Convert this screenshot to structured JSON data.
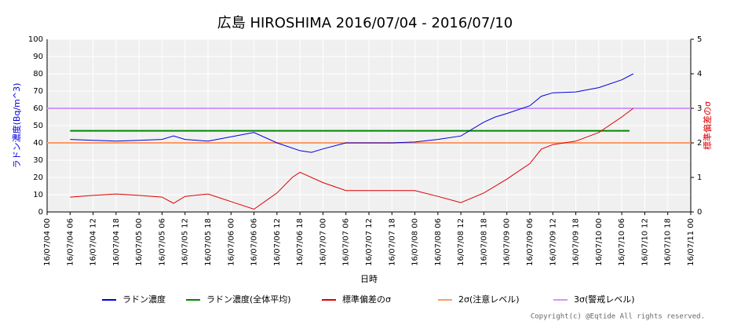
{
  "chart_data": {
    "type": "line",
    "title": "広島 HIROSHIMA 2016/07/04 - 2016/07/10",
    "y_label": "ラドン濃度(Bq/m^3)",
    "y2_label": "標準偏差のσ",
    "x_label": "日時",
    "copyright": "Copyright(c) @Eqtide All rights reserved.",
    "grid": true,
    "xlim": [
      0,
      168
    ],
    "xticks": [
      {
        "value": 0,
        "label": "16/07/04 00"
      },
      {
        "value": 6,
        "label": "16/07/04 06"
      },
      {
        "value": 12,
        "label": "16/07/04 12"
      },
      {
        "value": 18,
        "label": "16/07/04 18"
      },
      {
        "value": 24,
        "label": "16/07/05 00"
      },
      {
        "value": 30,
        "label": "16/07/05 06"
      },
      {
        "value": 36,
        "label": "16/07/05 12"
      },
      {
        "value": 42,
        "label": "16/07/05 18"
      },
      {
        "value": 48,
        "label": "16/07/06 00"
      },
      {
        "value": 54,
        "label": "16/07/06 06"
      },
      {
        "value": 60,
        "label": "16/07/06 12"
      },
      {
        "value": 66,
        "label": "16/07/06 18"
      },
      {
        "value": 72,
        "label": "16/07/07 00"
      },
      {
        "value": 78,
        "label": "16/07/07 06"
      },
      {
        "value": 84,
        "label": "16/07/07 12"
      },
      {
        "value": 90,
        "label": "16/07/07 18"
      },
      {
        "value": 96,
        "label": "16/07/08 00"
      },
      {
        "value": 102,
        "label": "16/07/08 06"
      },
      {
        "value": 108,
        "label": "16/07/08 12"
      },
      {
        "value": 114,
        "label": "16/07/08 18"
      },
      {
        "value": 120,
        "label": "16/07/09 00"
      },
      {
        "value": 126,
        "label": "16/07/09 06"
      },
      {
        "value": 132,
        "label": "16/07/09 12"
      },
      {
        "value": 138,
        "label": "16/07/09 18"
      },
      {
        "value": 144,
        "label": "16/07/10 00"
      },
      {
        "value": 150,
        "label": "16/07/10 06"
      },
      {
        "value": 156,
        "label": "16/07/10 12"
      },
      {
        "value": 162,
        "label": "16/07/10 18"
      },
      {
        "value": 168,
        "label": "16/07/11 00"
      }
    ],
    "ylim": [
      0,
      100
    ],
    "yticks": [
      0,
      10,
      20,
      30,
      40,
      50,
      60,
      70,
      80,
      90,
      100
    ],
    "y2lim": [
      0,
      5
    ],
    "y2ticks": [
      0,
      1,
      2,
      3,
      4,
      5
    ],
    "series": [
      {
        "name": "ラドン濃度",
        "color": "#0000dd",
        "x": [
          6,
          12,
          18,
          24,
          30,
          33,
          36,
          42,
          48,
          54,
          60,
          66,
          69,
          72,
          78,
          84,
          90,
          96,
          102,
          108,
          114,
          117,
          120,
          126,
          129,
          132,
          138,
          144,
          150,
          153
        ],
        "values": [
          42,
          41.5,
          41,
          41.5,
          42,
          44,
          42,
          41,
          43.5,
          46,
          40,
          35.5,
          34.5,
          36.5,
          40,
          40,
          40,
          40.5,
          42,
          44,
          52,
          55,
          57,
          61.5,
          67,
          69,
          69.5,
          72,
          76.5,
          80
        ]
      },
      {
        "name": "ラドン濃度(全体平均)",
        "color": "#008800",
        "x": [
          6,
          152
        ],
        "values": [
          47,
          47
        ]
      },
      {
        "name": "標準偏差のσ",
        "color": "#dd0000",
        "axis": "y2",
        "x": [
          6,
          12,
          18,
          24,
          30,
          33,
          36,
          42,
          48,
          54,
          60,
          64,
          66,
          72,
          78,
          84,
          90,
          96,
          102,
          108,
          114,
          120,
          126,
          129,
          132,
          135,
          138,
          144,
          150,
          153
        ],
        "values": [
          0.43,
          0.48,
          0.52,
          0.48,
          0.43,
          0.25,
          0.45,
          0.52,
          0.3,
          0.08,
          0.55,
          1.0,
          1.15,
          0.85,
          0.62,
          0.62,
          0.62,
          0.62,
          0.45,
          0.27,
          0.55,
          0.95,
          1.4,
          1.82,
          1.95,
          2.0,
          2.05,
          2.3,
          2.75,
          3.0
        ]
      },
      {
        "name": "2σ(注意レベル)",
        "color": "#ff9966",
        "axis": "y2",
        "x": [
          0,
          168
        ],
        "values": [
          2,
          2
        ]
      },
      {
        "name": "3σ(警戒レベル)",
        "color": "#cc99ff",
        "axis": "y2",
        "x": [
          0,
          168
        ],
        "values": [
          3,
          3
        ]
      }
    ]
  }
}
